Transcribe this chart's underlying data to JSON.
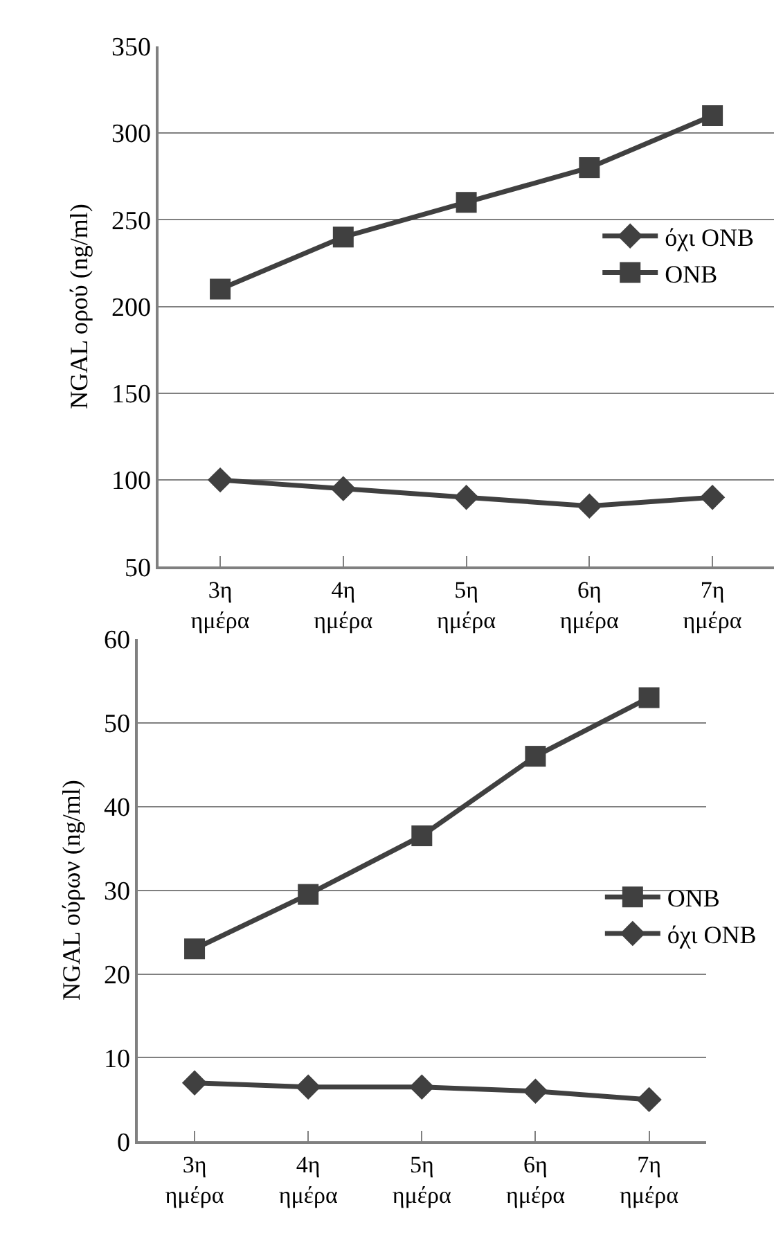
{
  "chart_data": [
    {
      "type": "line",
      "ylabel": "NGAL ορού (ng/ml)",
      "categories": [
        "3η\nημέρα",
        "4η\nημέρα",
        "5η\nημέρα",
        "6η\nημέρα",
        "7η\nημέρα"
      ],
      "ylim": [
        50,
        350
      ],
      "yticks": [
        50,
        100,
        150,
        200,
        250,
        300,
        350
      ],
      "grid": "y",
      "legend": "right",
      "line_style": "solid",
      "series": [
        {
          "name": "όχι ONB",
          "color": "#404040",
          "marker": "diamond",
          "values": [
            100,
            95,
            90,
            85,
            90
          ]
        },
        {
          "name": "ONB",
          "color": "#404040",
          "marker": "square",
          "values": [
            210,
            240,
            260,
            280,
            310
          ]
        }
      ]
    },
    {
      "type": "line",
      "ylabel": "NGAL ούρων (ng/ml)",
      "categories": [
        "3η\nημέρα",
        "4η\nημέρα",
        "5η\nημέρα",
        "6η\nημέρα",
        "7η\nημέρα"
      ],
      "ylim": [
        0,
        60
      ],
      "yticks": [
        0,
        10,
        20,
        30,
        40,
        50,
        60
      ],
      "grid": "y",
      "legend": "right",
      "line_style": "solid",
      "series": [
        {
          "name": "ONB",
          "color": "#404040",
          "marker": "square",
          "values": [
            23,
            29.5,
            36.5,
            46,
            53
          ]
        },
        {
          "name": "όχι ONB",
          "color": "#404040",
          "marker": "diamond",
          "values": [
            7,
            6.5,
            6.5,
            6,
            5
          ]
        }
      ]
    }
  ]
}
